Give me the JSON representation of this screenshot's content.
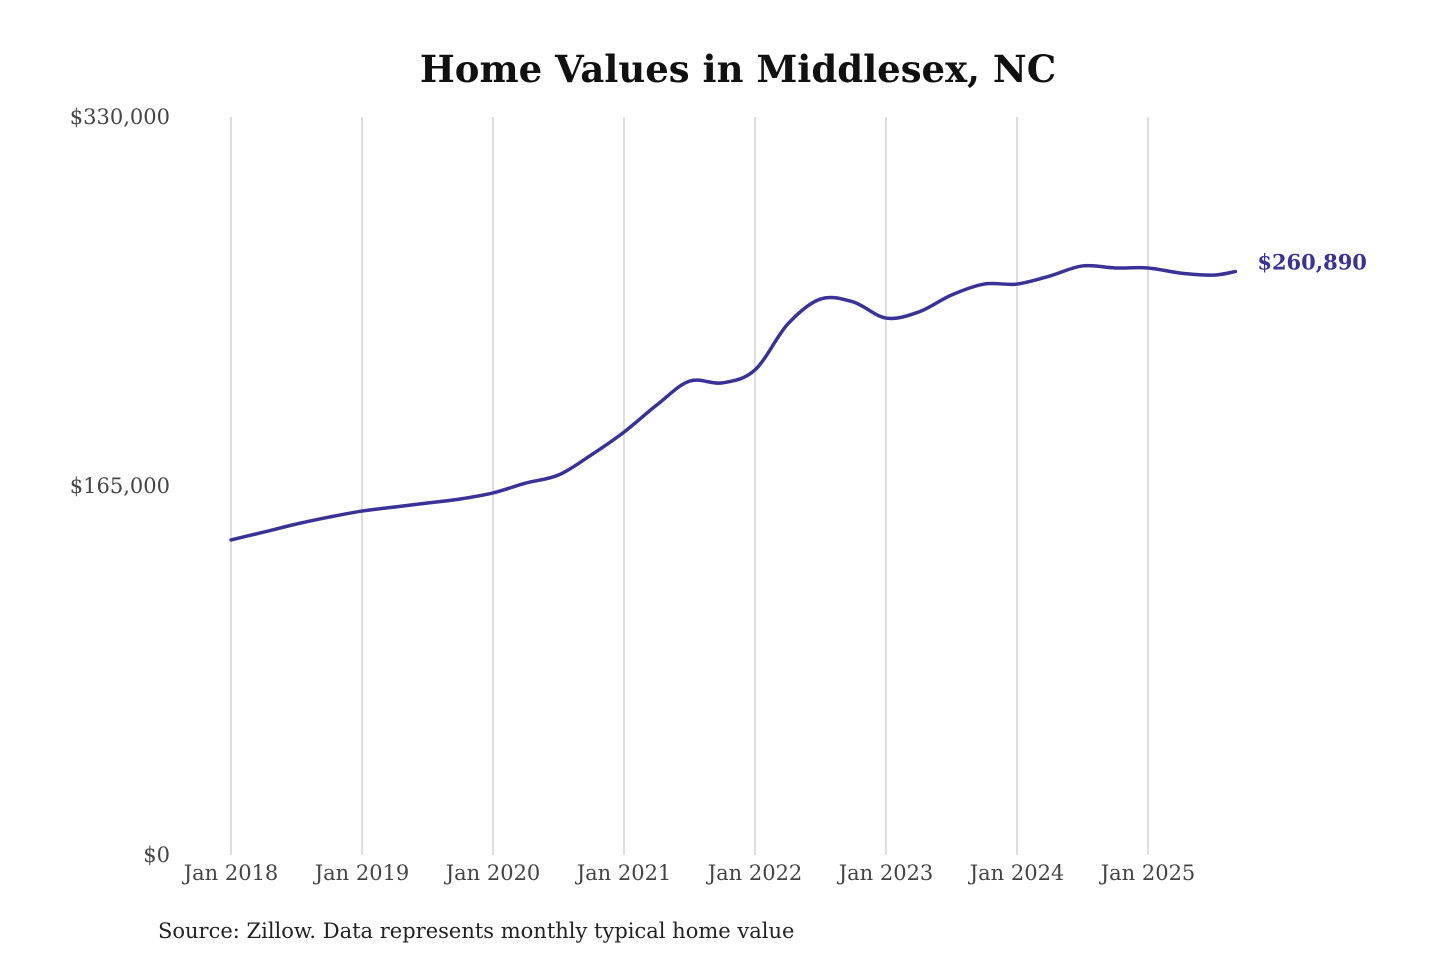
{
  "chart_data": {
    "type": "line",
    "title": "Home Values in Middlesex, NC",
    "source": "Source: Zillow. Data represents monthly typical home value",
    "xlabel": "",
    "ylabel": "",
    "ylim": [
      0,
      330000
    ],
    "y_ticks": [
      {
        "value": 0,
        "label": "$0"
      },
      {
        "value": 165000,
        "label": "$165,000"
      },
      {
        "value": 330000,
        "label": "$330,000"
      }
    ],
    "x_ticks": [
      {
        "date": "2018-01",
        "label": "Jan 2018"
      },
      {
        "date": "2019-01",
        "label": "Jan 2019"
      },
      {
        "date": "2020-01",
        "label": "Jan 2020"
      },
      {
        "date": "2021-01",
        "label": "Jan 2021"
      },
      {
        "date": "2022-01",
        "label": "Jan 2022"
      },
      {
        "date": "2023-01",
        "label": "Jan 2023"
      },
      {
        "date": "2024-01",
        "label": "Jan 2024"
      },
      {
        "date": "2025-01",
        "label": "Jan 2025"
      }
    ],
    "grid": "vertical",
    "line_color": "#3a3296",
    "end_label": "$260,890",
    "x": [
      "2018-01",
      "2018-04",
      "2018-07",
      "2018-10",
      "2019-01",
      "2019-04",
      "2019-07",
      "2019-10",
      "2020-01",
      "2020-04",
      "2020-07",
      "2020-10",
      "2021-01",
      "2021-04",
      "2021-07",
      "2021-10",
      "2022-01",
      "2022-04",
      "2022-07",
      "2022-10",
      "2023-01",
      "2023-04",
      "2023-07",
      "2023-10",
      "2024-01",
      "2024-04",
      "2024-07",
      "2024-10",
      "2025-01",
      "2025-04",
      "2025-07",
      "2025-09"
    ],
    "values": [
      140900,
      144400,
      148000,
      151100,
      153800,
      155600,
      157400,
      159200,
      161900,
      166300,
      169900,
      178900,
      189100,
      201200,
      211900,
      211100,
      216900,
      237400,
      248600,
      247300,
      240100,
      242800,
      250400,
      255300,
      255300,
      258900,
      263400,
      262500,
      262500,
      260200,
      259300,
      260890
    ]
  }
}
